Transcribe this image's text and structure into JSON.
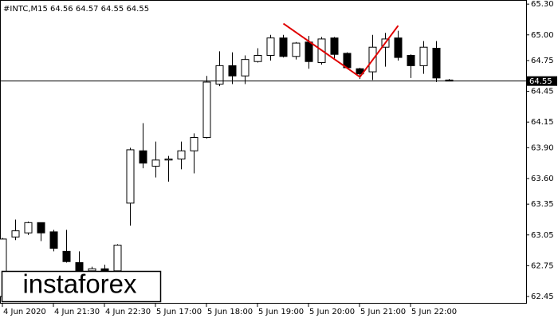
{
  "chart_data": {
    "type": "candlestick",
    "title": "#INTC,M15  64.56 64.57 64.55 64.55",
    "watermark": "instaforex",
    "categories": [
      "4 Jun 2020",
      null,
      null,
      null,
      "4 Jun 21:30",
      null,
      null,
      null,
      "4 Jun 22:30",
      null,
      null,
      null,
      "5 Jun 17:00",
      null,
      null,
      null,
      "5 Jun 18:00",
      null,
      null,
      null,
      "5 Jun 19:00",
      null,
      null,
      null,
      "5 Jun 20:00",
      null,
      null,
      null,
      "5 Jun 21:00",
      null,
      null,
      null,
      "5 Jun 22:00",
      null,
      null,
      null
    ],
    "open": [
      62.45,
      63.03,
      63.07,
      63.17,
      63.08,
      62.89,
      62.78,
      62.7,
      62.72,
      62.7,
      63.36,
      63.87,
      63.72,
      63.78,
      63.79,
      63.87,
      64.0,
      64.52,
      64.7,
      64.6,
      64.74,
      64.8,
      64.97,
      64.79,
      64.93,
      64.73,
      64.97,
      64.82,
      64.67,
      64.64,
      64.88,
      64.97,
      64.8,
      64.7,
      64.87,
      64.56
    ],
    "high": [
      63.02,
      63.2,
      63.18,
      63.17,
      63.1,
      63.1,
      62.89,
      62.74,
      62.76,
      62.96,
      63.9,
      64.14,
      63.96,
      63.82,
      63.96,
      64.04,
      64.6,
      64.84,
      64.83,
      64.8,
      64.87,
      65.0,
      65.0,
      64.93,
      64.99,
      64.98,
      64.98,
      64.83,
      64.68,
      65.0,
      65.02,
      65.04,
      64.81,
      64.94,
      64.94,
      64.57
    ],
    "low": [
      62.4,
      63.0,
      63.05,
      62.99,
      62.89,
      62.78,
      62.66,
      62.64,
      62.66,
      62.66,
      63.14,
      63.7,
      63.61,
      63.57,
      63.69,
      63.65,
      63.99,
      64.5,
      64.52,
      64.52,
      64.73,
      64.75,
      64.78,
      64.76,
      64.67,
      64.71,
      64.76,
      64.67,
      64.57,
      64.56,
      64.69,
      64.75,
      64.58,
      64.62,
      64.54,
      64.55
    ],
    "close": [
      63.01,
      63.09,
      63.17,
      63.07,
      62.92,
      62.79,
      62.69,
      62.72,
      62.7,
      62.95,
      63.88,
      63.75,
      63.78,
      63.79,
      63.87,
      64.0,
      64.54,
      64.7,
      64.6,
      64.76,
      64.8,
      64.97,
      64.79,
      64.92,
      64.74,
      64.96,
      64.81,
      64.68,
      64.62,
      64.88,
      64.96,
      64.78,
      64.7,
      64.88,
      64.58,
      64.55
    ],
    "up_color": "#ffffff",
    "down_color": "#000000",
    "outline_color": "#000000",
    "current_price": 64.55,
    "pattern_line": {
      "color": "#e00000",
      "index": [
        22,
        28,
        31
      ],
      "values": [
        65.11,
        64.59,
        65.09
      ]
    },
    "ylim": [
      62.38,
      65.34
    ],
    "yticks": [
      {
        "value": 65.3,
        "label": "65.30"
      },
      {
        "value": 65.0,
        "label": "65.00"
      },
      64.75,
      64.45,
      64.15,
      {
        "value": 63.9,
        "label": "63.90"
      },
      {
        "value": 63.6,
        "label": "63.60"
      },
      63.35,
      63.05,
      62.75,
      62.45
    ]
  }
}
